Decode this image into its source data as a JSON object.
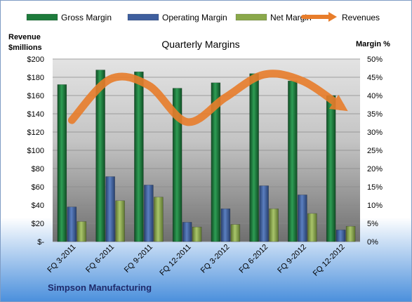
{
  "chart_data": {
    "type": "bar",
    "title": "Quarterly Margins",
    "footer": "Simpson Manufacturing",
    "categories": [
      "FQ 3-2011",
      "FQ 6-2011",
      "FQ 9-2011",
      "FQ 12-2011",
      "FQ 3-2012",
      "FQ 6-2012",
      "FQ 9-2012",
      "FQ 12-2012"
    ],
    "left_axis": {
      "title_line1": "Revenue",
      "title_line2": "$millions",
      "ylim": [
        0,
        200
      ],
      "ticks": [
        "$-",
        "$20",
        "$40",
        "$60",
        "$80",
        "$100",
        "$120",
        "$140",
        "$160",
        "$180",
        "$200"
      ]
    },
    "right_axis": {
      "title": "Margin %",
      "ylim": [
        0,
        50
      ],
      "ticks": [
        "0%",
        "5%",
        "10%",
        "15%",
        "20%",
        "25%",
        "30%",
        "35%",
        "40%",
        "45%",
        "50%"
      ]
    },
    "series": [
      {
        "name": "Gross Margin",
        "type": "bar",
        "axis": "right",
        "color": "#1e7b3c",
        "values": [
          43,
          47,
          46.5,
          42,
          43.5,
          46,
          44,
          40
        ]
      },
      {
        "name": "Operating Margin",
        "type": "bar",
        "axis": "right",
        "color": "#3f5f9e",
        "values": [
          9.5,
          17.8,
          15.5,
          5.3,
          9,
          15.3,
          12.8,
          3.2
        ]
      },
      {
        "name": "Net Margin",
        "type": "bar",
        "axis": "right",
        "color": "#8aa84b",
        "values": [
          5.5,
          11.2,
          12.2,
          4,
          4.7,
          9,
          7.7,
          4.2
        ]
      },
      {
        "name": "Revenues",
        "type": "line",
        "axis": "left",
        "color": "#e87d2b",
        "values": [
          133,
          178,
          171,
          131,
          158,
          183,
          176,
          148
        ]
      }
    ],
    "grid": true,
    "legend": "top"
  }
}
